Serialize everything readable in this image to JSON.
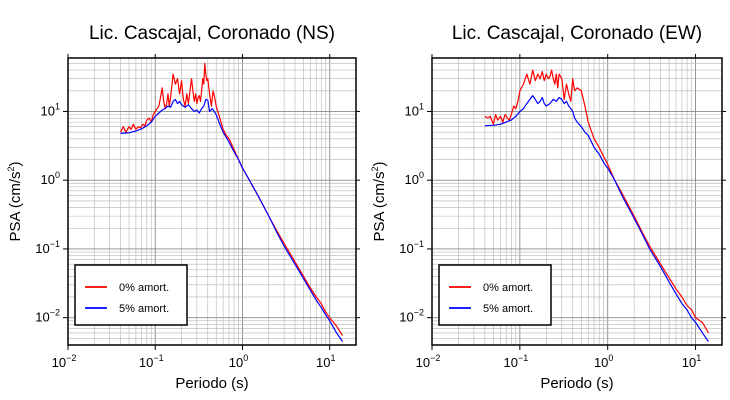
{
  "chart_data": [
    {
      "type": "line",
      "title": "Lic. Cascajal, Coronado (NS)",
      "xlabel": "Periodo (s)",
      "ylabel_base": "PSA (cm/s",
      "ylabel_sup": "2",
      "ylabel_tail": ")",
      "x_scale": "log",
      "y_scale": "log",
      "xlim": [
        0.01,
        20
      ],
      "ylim": [
        0.004,
        60
      ],
      "x_ticks": [
        {
          "base": "10",
          "exp": "−2",
          "value": 0.01
        },
        {
          "base": "10",
          "exp": "−1",
          "value": 0.1
        },
        {
          "base": "10",
          "exp": "0",
          "value": 1
        },
        {
          "base": "10",
          "exp": "1",
          "value": 10
        }
      ],
      "y_ticks": [
        {
          "base": "10",
          "exp": "−2",
          "value": 0.01
        },
        {
          "base": "10",
          "exp": "−1",
          "value": 0.1
        },
        {
          "base": "10",
          "exp": "0",
          "value": 1
        },
        {
          "base": "10",
          "exp": "1",
          "value": 10
        }
      ],
      "grid": true,
      "legend": "bottom-left",
      "series": [
        {
          "name": "0% amort.",
          "color": "#ff0000",
          "x": [
            0.04,
            0.043,
            0.046,
            0.05,
            0.053,
            0.056,
            0.06,
            0.064,
            0.068,
            0.072,
            0.076,
            0.08,
            0.085,
            0.09,
            0.095,
            0.1,
            0.105,
            0.11,
            0.115,
            0.12,
            0.125,
            0.13,
            0.135,
            0.14,
            0.145,
            0.15,
            0.16,
            0.17,
            0.18,
            0.19,
            0.2,
            0.21,
            0.22,
            0.23,
            0.24,
            0.25,
            0.26,
            0.27,
            0.28,
            0.29,
            0.3,
            0.31,
            0.32,
            0.33,
            0.34,
            0.35,
            0.36,
            0.37,
            0.38,
            0.39,
            0.4,
            0.42,
            0.44,
            0.46,
            0.48,
            0.5,
            0.55,
            0.6,
            0.65,
            0.7,
            0.8,
            0.9,
            1.0,
            1.2,
            1.5,
            2,
            2.5,
            3,
            4,
            5,
            6,
            7,
            8,
            9,
            10,
            12,
            14
          ],
          "y": [
            5,
            6,
            5,
            6,
            5.5,
            6.5,
            5.5,
            6,
            5.8,
            6.5,
            6.2,
            7.5,
            8,
            7,
            9,
            10,
            11,
            12,
            16,
            22,
            14,
            11,
            13,
            18,
            12,
            16,
            35,
            25,
            30,
            18,
            28,
            15,
            12,
            18,
            13,
            20,
            30,
            20,
            14,
            18,
            13,
            16,
            17,
            14,
            20,
            30,
            25,
            50,
            35,
            28,
            30,
            18,
            12,
            20,
            16,
            12,
            8,
            5.5,
            4.5,
            4,
            2.8,
            2,
            1.5,
            1,
            0.6,
            0.3,
            0.18,
            0.12,
            0.065,
            0.04,
            0.027,
            0.02,
            0.016,
            0.012,
            0.01,
            0.0075,
            0.0055
          ]
        },
        {
          "name": "5% amort.",
          "color": "#0000ff",
          "x": [
            0.04,
            0.05,
            0.06,
            0.07,
            0.08,
            0.09,
            0.1,
            0.11,
            0.12,
            0.13,
            0.14,
            0.15,
            0.16,
            0.17,
            0.18,
            0.19,
            0.2,
            0.22,
            0.24,
            0.26,
            0.28,
            0.3,
            0.32,
            0.34,
            0.36,
            0.38,
            0.4,
            0.42,
            0.45,
            0.5,
            0.55,
            0.6,
            0.7,
            0.8,
            0.9,
            1.0,
            1.2,
            1.5,
            2,
            2.5,
            3,
            4,
            5,
            6,
            7,
            8,
            9,
            10,
            12,
            14
          ],
          "y": [
            4.8,
            4.9,
            5.2,
            5.6,
            6.2,
            7,
            8.5,
            9.5,
            10.5,
            11,
            12,
            11.5,
            14,
            15,
            13,
            14,
            12.5,
            11.5,
            12.5,
            11,
            10,
            10.5,
            9.5,
            11,
            12,
            15,
            14.5,
            10,
            11,
            9,
            6.5,
            5,
            3.6,
            2.6,
            2,
            1.5,
            1,
            0.6,
            0.3,
            0.17,
            0.11,
            0.06,
            0.037,
            0.025,
            0.018,
            0.014,
            0.011,
            0.009,
            0.006,
            0.0045
          ]
        }
      ]
    },
    {
      "type": "line",
      "title": "Lic. Cascajal, Coronado (EW)",
      "xlabel": "Periodo (s)",
      "ylabel_base": "PSA (cm/s",
      "ylabel_sup": "2",
      "ylabel_tail": ")",
      "x_scale": "log",
      "y_scale": "log",
      "xlim": [
        0.01,
        20
      ],
      "ylim": [
        0.004,
        60
      ],
      "x_ticks": [
        {
          "base": "10",
          "exp": "−2",
          "value": 0.01
        },
        {
          "base": "10",
          "exp": "−1",
          "value": 0.1
        },
        {
          "base": "10",
          "exp": "0",
          "value": 1
        },
        {
          "base": "10",
          "exp": "1",
          "value": 10
        }
      ],
      "y_ticks": [
        {
          "base": "10",
          "exp": "−2",
          "value": 0.01
        },
        {
          "base": "10",
          "exp": "−1",
          "value": 0.1
        },
        {
          "base": "10",
          "exp": "0",
          "value": 1
        },
        {
          "base": "10",
          "exp": "1",
          "value": 10
        }
      ],
      "grid": true,
      "legend": "bottom-left",
      "series": [
        {
          "name": "0% amort.",
          "color": "#ff0000",
          "x": [
            0.04,
            0.043,
            0.046,
            0.05,
            0.053,
            0.056,
            0.06,
            0.064,
            0.068,
            0.072,
            0.076,
            0.08,
            0.085,
            0.09,
            0.095,
            0.1,
            0.11,
            0.12,
            0.13,
            0.14,
            0.15,
            0.16,
            0.17,
            0.18,
            0.19,
            0.2,
            0.21,
            0.22,
            0.23,
            0.24,
            0.25,
            0.26,
            0.27,
            0.28,
            0.3,
            0.32,
            0.34,
            0.36,
            0.38,
            0.4,
            0.42,
            0.45,
            0.5,
            0.55,
            0.6,
            0.7,
            0.8,
            0.9,
            1.0,
            1.2,
            1.5,
            2,
            2.5,
            3,
            4,
            5,
            6,
            7,
            8,
            9,
            10,
            12,
            14
          ],
          "y": [
            8.5,
            8,
            8.5,
            6.5,
            9,
            7.5,
            8.5,
            7,
            9,
            8,
            7.5,
            9,
            12,
            11,
            14,
            20,
            25,
            35,
            25,
            40,
            28,
            35,
            30,
            38,
            28,
            35,
            30,
            32,
            40,
            30,
            25,
            35,
            22,
            35,
            30,
            15,
            25,
            18,
            14,
            30,
            20,
            22,
            20,
            12,
            7,
            4,
            3,
            2.2,
            1.7,
            1,
            0.6,
            0.3,
            0.17,
            0.11,
            0.06,
            0.038,
            0.026,
            0.02,
            0.015,
            0.013,
            0.01,
            0.0085,
            0.006
          ]
        },
        {
          "name": "5% amort.",
          "color": "#0000ff",
          "x": [
            0.04,
            0.05,
            0.06,
            0.07,
            0.08,
            0.09,
            0.1,
            0.11,
            0.12,
            0.13,
            0.14,
            0.15,
            0.16,
            0.17,
            0.18,
            0.19,
            0.2,
            0.22,
            0.24,
            0.26,
            0.28,
            0.3,
            0.32,
            0.34,
            0.36,
            0.38,
            0.4,
            0.42,
            0.45,
            0.5,
            0.55,
            0.6,
            0.7,
            0.8,
            0.9,
            1.0,
            1.2,
            1.5,
            2,
            2.5,
            3,
            4,
            5,
            6,
            7,
            8,
            9,
            10,
            12,
            14
          ],
          "y": [
            6.2,
            6.3,
            6.5,
            7,
            7.5,
            8.5,
            10,
            11,
            13,
            15,
            17,
            15,
            13,
            14,
            16,
            13,
            12,
            13,
            15,
            14,
            16,
            15,
            13,
            14,
            12,
            11,
            10,
            8,
            7,
            6,
            5,
            4.5,
            3,
            2.4,
            1.8,
            1.5,
            1,
            0.55,
            0.28,
            0.16,
            0.1,
            0.055,
            0.033,
            0.022,
            0.016,
            0.013,
            0.01,
            0.0085,
            0.006,
            0.0045
          ]
        }
      ]
    }
  ]
}
